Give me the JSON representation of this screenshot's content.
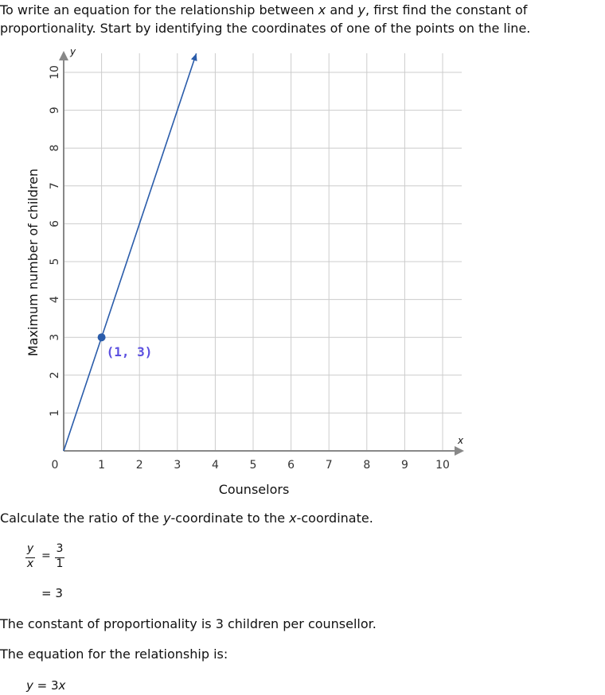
{
  "intro": {
    "line1_a": "To write an equation for the relationship between ",
    "x": "x",
    "line1_b": " and ",
    "y": "y",
    "line1_c": ", first find the constant of",
    "line2": "proportionality. Start by identifying the coordinates of one of the points on the line."
  },
  "chart_data": {
    "type": "line",
    "xlabel": "Counselors",
    "ylabel": "Maximum number of children",
    "x_axis_var": "x",
    "y_axis_var": "y",
    "xlim": [
      0,
      10
    ],
    "ylim": [
      0,
      10
    ],
    "x_ticks": [
      "1",
      "2",
      "3",
      "4",
      "5",
      "6",
      "7",
      "8",
      "9",
      "10"
    ],
    "y_ticks": [
      "1",
      "2",
      "3",
      "4",
      "5",
      "6",
      "7",
      "8",
      "9",
      "10"
    ],
    "origin_label": "0",
    "grid": true,
    "line": {
      "slope": 3,
      "x": [
        0,
        3.5
      ],
      "y": [
        0,
        10.5
      ],
      "color": "#2a5caa"
    },
    "point": {
      "x": 1,
      "y": 3,
      "label": "(1, 3)",
      "color": "#2a5caa",
      "label_color": "#5b4fe0"
    },
    "axis_color": "#888888",
    "grid_color": "#cccccc"
  },
  "calc": {
    "text_a": "Calculate the ratio of the ",
    "y": "y",
    "text_b": "-coordinate to the ",
    "x": "x",
    "text_c": "-coordinate.",
    "frac_num": "y",
    "frac_den": "x",
    "eq": "=",
    "val_num": "3",
    "val_den": "1",
    "result": "= 3"
  },
  "constant_text": "The constant of proportionality is 3 children per counsellor.",
  "equation_intro": "The equation for the relationship is:",
  "equation": {
    "y": "y",
    "eq": " = 3",
    "x": "x"
  }
}
